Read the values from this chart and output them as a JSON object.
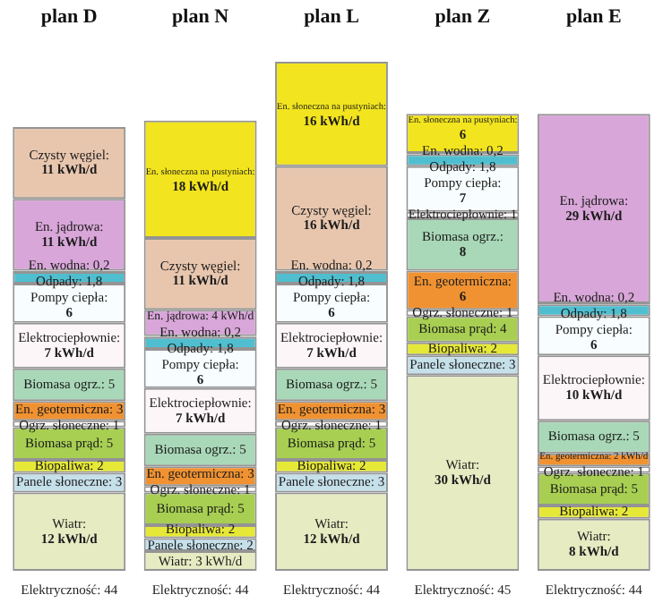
{
  "chart_data": {
    "type": "bar",
    "stacked": true,
    "legend": false,
    "grid": false,
    "categories": [
      "plan D",
      "plan N",
      "plan L",
      "plan Z",
      "plan E"
    ],
    "series": [
      {
        "name": "Wiatr:",
        "color": "#e6ebc2",
        "values": [
          12,
          3,
          12,
          30,
          8
        ],
        "value_labels": [
          "12 kWh/d",
          "3 kWh/d",
          "12 kWh/d",
          "30 kWh/d",
          "8 kWh/d"
        ]
      },
      {
        "name": "Panele słoneczne:",
        "color": "#c6e0ea",
        "values": [
          3,
          2,
          3,
          3,
          null
        ],
        "value_labels": [
          "3",
          "2",
          "3",
          "3",
          null
        ]
      },
      {
        "name": "Biopaliwa:",
        "color": "#e6e838",
        "values": [
          2,
          2,
          2,
          2,
          2
        ],
        "value_labels": [
          "2",
          "2",
          "2",
          "2",
          "2"
        ]
      },
      {
        "name": "Biomasa prąd:",
        "color": "#a8cf52",
        "values": [
          5,
          5,
          5,
          4,
          5
        ],
        "value_labels": [
          "5",
          "5",
          "5",
          "4",
          "5"
        ]
      },
      {
        "name": "Ogrz. słoneczne:",
        "color": "#ffffff",
        "values": [
          1,
          1,
          1,
          1,
          1
        ],
        "value_labels": [
          "1",
          "1",
          "1",
          "1",
          "1"
        ]
      },
      {
        "name": "En. geotermiczna:",
        "color": "#f09232",
        "values": [
          3,
          3,
          3,
          6,
          2
        ],
        "value_labels": [
          "3",
          "3",
          "3",
          "6",
          "2 kWh/d"
        ]
      },
      {
        "name": "Biomasa ogrz.:",
        "color": "#a9d8b8",
        "values": [
          5,
          5,
          5,
          8,
          5
        ],
        "value_labels": [
          "5",
          "5",
          "5",
          "8",
          "5"
        ]
      },
      {
        "name": "Elektrociepłownie:",
        "color": "#fdf6f8",
        "values": [
          7,
          7,
          7,
          1,
          10
        ],
        "value_labels": [
          "7 kWh/d",
          "7 kWh/d",
          "7 kWh/d",
          "1",
          "10 kWh/d"
        ]
      },
      {
        "name": "Pompy ciepła:",
        "color": "#f8feff",
        "values": [
          6,
          6,
          6,
          7,
          6
        ],
        "value_labels": [
          "6",
          "6",
          "6",
          "7",
          "6"
        ]
      },
      {
        "name": "Odpady:",
        "color": "#4fbfd0",
        "values": [
          1.8,
          1.8,
          1.8,
          1.8,
          1.8
        ],
        "value_labels": [
          "1,8",
          "1,8",
          "1,8",
          "1,8",
          "1,8"
        ]
      },
      {
        "name": "En. wodna:",
        "color": "#3e6b72",
        "values": [
          0.2,
          0.2,
          0.2,
          0.2,
          0.2
        ],
        "value_labels": [
          "0,2",
          "0,2",
          "0,2",
          "0,2",
          "0,2"
        ]
      },
      {
        "name": "En. jądrowa:",
        "color": "#d8a6d8",
        "values": [
          11,
          4,
          null,
          null,
          29
        ],
        "value_labels": [
          "11 kWh/d",
          "4 kWh/d",
          null,
          null,
          "29 kWh/d"
        ]
      },
      {
        "name": "Czysty węgiel:",
        "color": "#e8c6ae",
        "values": [
          11,
          11,
          16,
          null,
          null
        ],
        "value_labels": [
          "11 kWh/d",
          "11 kWh/d",
          "16 kWh/d",
          null,
          null
        ]
      },
      {
        "name": "En. słoneczna na pustyniach:",
        "color": "#f2e41e",
        "values": [
          null,
          18,
          16,
          6,
          null
        ],
        "value_labels": [
          null,
          "18 kWh/d",
          "16 kWh/d",
          "6",
          null
        ]
      }
    ],
    "annotations": [
      "Elektryczność: 44",
      "Elektryczność: 44",
      "Elektryczność: 44",
      "Elektryczność: 45",
      "Elektryczność: 44"
    ]
  }
}
